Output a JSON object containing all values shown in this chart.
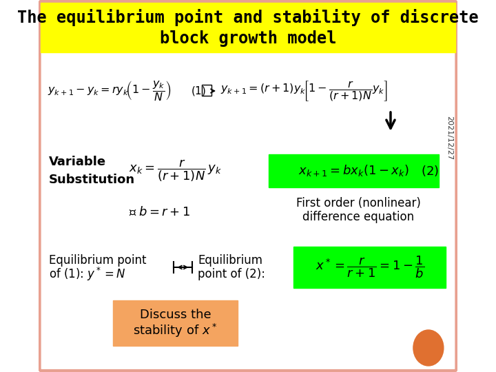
{
  "title_line1": "The equilibrium point and stability of discrete",
  "title_line2": "block growth model",
  "title_bg": "#FFFF00",
  "title_color": "#000000",
  "slide_bg": "#FFFFFF",
  "border_color": "#E8A090",
  "date_text": "2021/12/27",
  "green_bg": "#00FF00",
  "orange_bg": "#F4A460",
  "orange_circle_color": "#E07030",
  "var_sub_label": "Variable\nSubstitution",
  "first_order_line1": "First order (nonlinear)",
  "first_order_line2": "difference equation",
  "equil1_line1": "Equilibrium point",
  "equil1_line2": "of (1):",
  "equil2_line1": "Equilibrium",
  "equil2_line2": "point of (2):",
  "discuss_line1": "Discuss the",
  "discuss_line2": "stability of"
}
